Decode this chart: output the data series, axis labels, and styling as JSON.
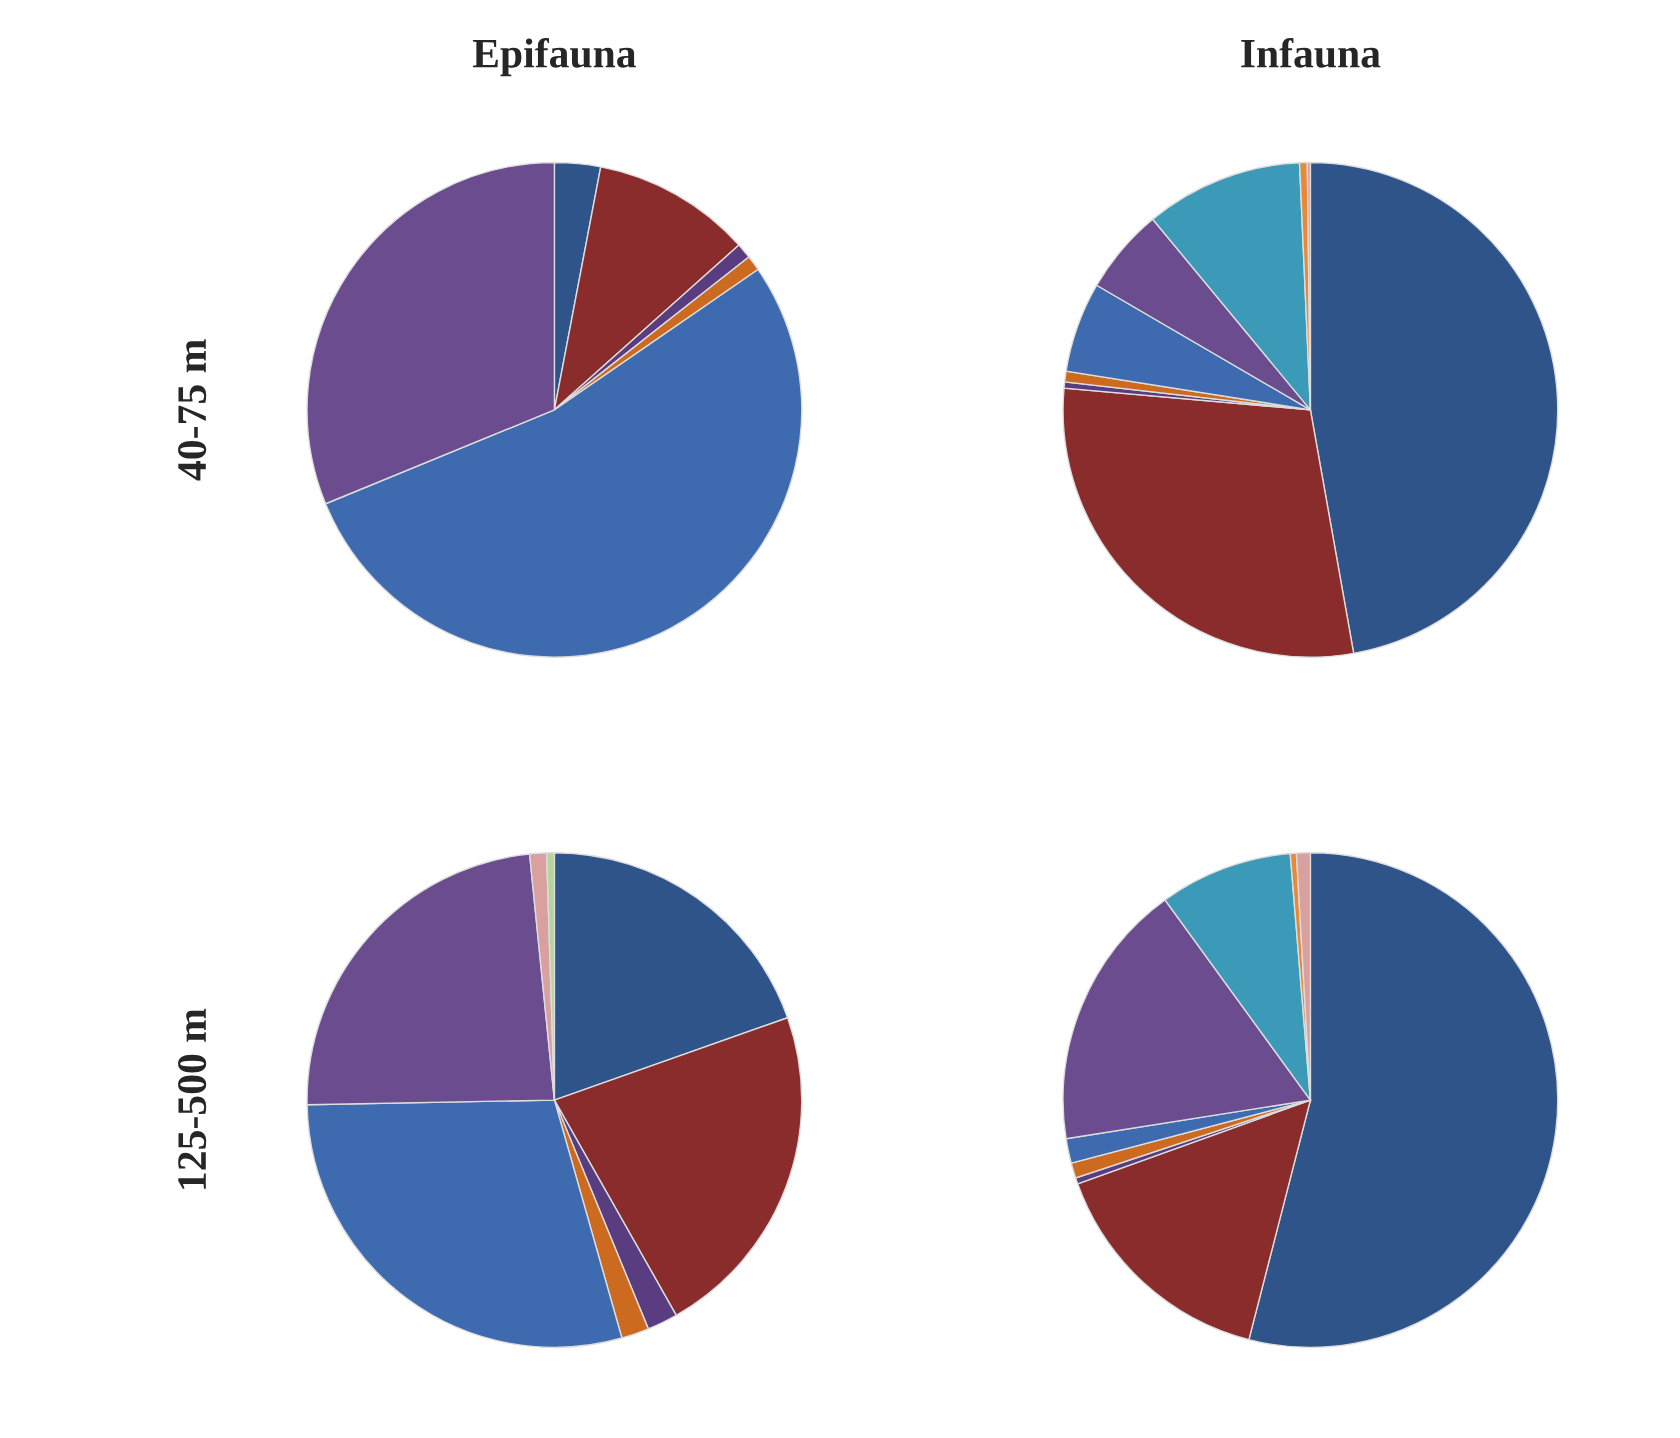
{
  "chart_data": [
    {
      "type": "pie",
      "title": "Epifauna",
      "ylabel": "40-75 m",
      "categories": [
        null,
        null,
        null,
        null,
        null,
        null
      ],
      "values": [
        3,
        10.4,
        1,
        1,
        53.4,
        31.2
      ],
      "colors": [
        "#2f5489",
        "#8b2c2c",
        "#5a3d80",
        "#cc6a1f",
        "#3e6aaf",
        "#6a4c8f"
      ]
    },
    {
      "type": "pie",
      "title": "Infauna",
      "categories": [
        null,
        null,
        null,
        null,
        null,
        null,
        null,
        null,
        null
      ],
      "values": [
        47.2,
        29.2,
        0.4,
        0.7,
        5.9,
        5.6,
        10.3,
        0.5,
        0.2
      ],
      "colors": [
        "#2f5489",
        "#8b2c2c",
        "#5a3d80",
        "#cc6a1f",
        "#3e6aaf",
        "#6a4c8f",
        "#3a9ab8",
        "#e8893a",
        "#d9a0a0"
      ]
    },
    {
      "type": "pie",
      "ylabel": "125-500 m",
      "categories": [
        null,
        null,
        null,
        null,
        null,
        null,
        null,
        null
      ],
      "values": [
        19.6,
        22.2,
        2,
        1.8,
        29.1,
        23.7,
        1.1,
        0.5
      ],
      "colors": [
        "#2f5489",
        "#8b2c2c",
        "#5a3d80",
        "#cc6a1f",
        "#3e6aaf",
        "#6a4c8f",
        "#d9a0a0",
        "#b5d59a"
      ]
    },
    {
      "type": "pie",
      "categories": [
        null,
        null,
        null,
        null,
        null,
        null,
        null,
        null,
        null
      ],
      "values": [
        54,
        15.5,
        0.4,
        1,
        1.6,
        17.5,
        8.7,
        0.4,
        0.9
      ],
      "colors": [
        "#2f5489",
        "#8b2c2c",
        "#5a3d80",
        "#cc6a1f",
        "#3e6aaf",
        "#6a4c8f",
        "#3a9ab8",
        "#e8893a",
        "#d9a0a0"
      ]
    }
  ]
}
